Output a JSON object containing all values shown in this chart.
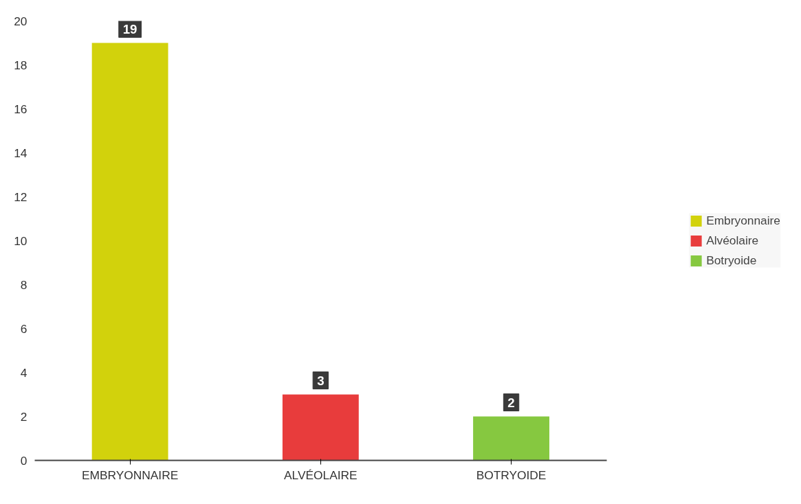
{
  "chart_data": {
    "type": "bar",
    "categories": [
      "EMBRYONNAIRE",
      "ALVÉOLAIRE",
      "BOTRYOIDE"
    ],
    "series": [
      {
        "name": "Embryonnaire",
        "color": "#d2d20c",
        "values": [
          19,
          null,
          null
        ]
      },
      {
        "name": "Alvéolaire",
        "color": "#e83c3c",
        "values": [
          null,
          3,
          null
        ]
      },
      {
        "name": "Botryoide",
        "color": "#86c840",
        "values": [
          null,
          null,
          2
        ]
      }
    ],
    "ylim": [
      0,
      20
    ],
    "yticks": [
      0,
      2,
      4,
      6,
      8,
      10,
      12,
      14,
      16,
      18,
      20
    ],
    "grid": false,
    "legend": "right",
    "data_labels": true
  }
}
